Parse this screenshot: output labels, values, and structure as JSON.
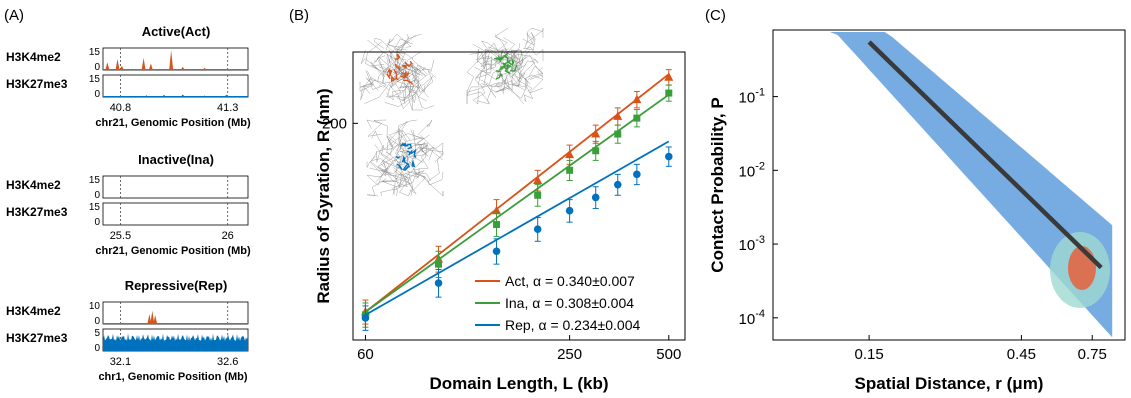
{
  "panel_labels": [
    "(A)",
    "(B)",
    "(C)"
  ],
  "chart_data": [
    {
      "type": "area",
      "panel": "(A)",
      "groups": [
        {
          "title": "Active(Act)",
          "tracks": [
            {
              "label": "H3K4me2",
              "ymax": "15",
              "ymin": "0",
              "color": "#d95319",
              "peaks": [
                [
                  0.03,
                  0.35
                ],
                [
                  0.1,
                  0.5
                ],
                [
                  0.13,
                  0.2
                ],
                [
                  0.28,
                  0.55
                ],
                [
                  0.33,
                  0.3
                ],
                [
                  0.47,
                  0.9
                ],
                [
                  0.55,
                  0.15
                ],
                [
                  0.7,
                  0.1
                ]
              ]
            },
            {
              "label": "H3K27me3",
              "ymax": "15",
              "ymin": "0",
              "color": "#0072bd",
              "peaks": [
                [
                  0.3,
                  0.08
                ],
                [
                  0.42,
                  0.1
                ],
                [
                  0.55,
                  0.12
                ],
                [
                  0.7,
                  0.07
                ],
                [
                  0.85,
                  0.1
                ]
              ]
            }
          ],
          "ticks": [
            "40.8",
            "41.3"
          ],
          "xlabel": "chr21, Genomic Position (Mb)"
        },
        {
          "title": "Inactive(Ina)",
          "tracks": [
            {
              "label": "H3K4me2",
              "ymax": "15",
              "ymin": "0",
              "color": "#d95319",
              "peaks": []
            },
            {
              "label": "H3K27me3",
              "ymax": "15",
              "ymin": "0",
              "color": "#0072bd",
              "peaks": []
            }
          ],
          "ticks": [
            "25.5",
            "26"
          ],
          "xlabel": "chr21, Genomic Position (Mb)"
        },
        {
          "title": "Repressive(Rep)",
          "tracks": [
            {
              "label": "H3K4me2",
              "ymax": "10",
              "ymin": "0",
              "color": "#d95319",
              "peaks": [
                [
                  0.32,
                  0.45
                ],
                [
                  0.34,
                  0.6
                ],
                [
                  0.36,
                  0.4
                ]
              ]
            },
            {
              "label": "H3K27me3",
              "ymax": "5",
              "ymin": "0",
              "color": "#0072bd",
              "dense": true,
              "peaks": []
            }
          ],
          "ticks": [
            "32.1",
            "32.6"
          ],
          "xlabel": "chr1, Genomic Position (Mb)"
        }
      ]
    },
    {
      "type": "line",
      "panel": "(B)",
      "xlabel": "Domain Length, L (kb)",
      "ylabel": "Radius of Gyration, R (nm)",
      "xscale": "log",
      "yscale": "log",
      "xlim": [
        55,
        560
      ],
      "ylim": [
        108,
        245
      ],
      "xticks": [
        60,
        250,
        500
      ],
      "yticks": [
        200
      ],
      "series": [
        {
          "name": "Act, α = 0.340±0.007",
          "color": "#d95319",
          "marker": "triangle",
          "x": [
            60,
            100,
            150,
            200,
            250,
            300,
            350,
            400,
            500
          ],
          "y": [
            117,
            136,
            156,
            170,
            183,
            194,
            204,
            214,
            228
          ],
          "err": [
            4,
            5,
            5,
            5,
            5,
            5,
            5,
            5,
            5
          ],
          "fit": [
            [
              60,
              117
            ],
            [
              500,
              230
            ]
          ]
        },
        {
          "name": "Ina, α = 0.308±0.004",
          "color": "#3a9e3a",
          "marker": "square",
          "x": [
            60,
            100,
            150,
            200,
            250,
            300,
            350,
            400,
            500
          ],
          "y": [
            116,
            134,
            150,
            163,
            175,
            185,
            194,
            203,
            218
          ],
          "err": [
            4,
            5,
            5,
            5,
            5,
            5,
            5,
            5,
            5
          ],
          "fit": [
            [
              60,
              117
            ],
            [
              500,
              217
            ]
          ]
        },
        {
          "name": "Rep, α = 0.234±0.004",
          "color": "#0072bd",
          "marker": "circle",
          "x": [
            60,
            100,
            150,
            200,
            250,
            300,
            350,
            400,
            500
          ],
          "y": [
            115,
            127,
            139,
            148,
            156,
            162,
            168,
            173,
            182
          ],
          "err": [
            4,
            5,
            5,
            5,
            5,
            5,
            5,
            5,
            5
          ],
          "fit": [
            [
              60,
              116
            ],
            [
              500,
              190
            ]
          ]
        }
      ],
      "legend_position": "bottom-right"
    },
    {
      "type": "heatmap",
      "panel": "(C)",
      "xlabel": "Spatial Distance, r (μm)",
      "ylabel": "Contact Probability, P",
      "xscale": "log",
      "yscale": "log",
      "xlim": [
        0.075,
        0.95
      ],
      "ylim": [
        5e-05,
        0.8
      ],
      "xticks": [
        "0.15",
        "0.45",
        "0.75"
      ],
      "yticks": [
        "10^-1",
        "10^-2",
        "10^-3",
        "10^-4"
      ],
      "fit_line": [
        [
          0.15,
          0.55
        ],
        [
          0.8,
          0.00048
        ]
      ],
      "colors": {
        "low": "#4a90d9",
        "mid": "#9ed9d0",
        "high": "#e8603c"
      }
    }
  ]
}
